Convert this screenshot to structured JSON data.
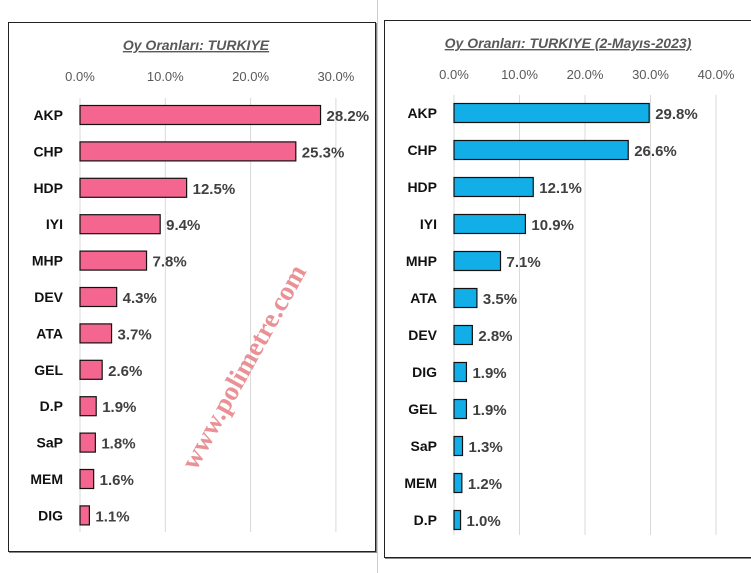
{
  "watermark": "www.polimetre.com",
  "chart_data": [
    {
      "type": "bar",
      "orientation": "horizontal",
      "title": "Oy Oranları: TURKIYE",
      "xlim": [
        0,
        30
      ],
      "ticks": [
        "0.0%",
        "10.0%",
        "20.0%",
        "30.0%"
      ],
      "tick_values": [
        0,
        10,
        20,
        30
      ],
      "color": "#f4668f",
      "categories": [
        "AKP",
        "CHP",
        "HDP",
        "IYI",
        "MHP",
        "DEV",
        "ATA",
        "GEL",
        "D.P",
        "SaP",
        "MEM",
        "DIG"
      ],
      "values": [
        28.2,
        25.3,
        12.5,
        9.4,
        7.8,
        4.3,
        3.7,
        2.6,
        1.9,
        1.8,
        1.6,
        1.1
      ],
      "labels": [
        "28.2%",
        "25.3%",
        "12.5%",
        "9.4%",
        "7.8%",
        "4.3%",
        "3.7%",
        "2.6%",
        "1.9%",
        "1.8%",
        "1.6%",
        "1.1%"
      ]
    },
    {
      "type": "bar",
      "orientation": "horizontal",
      "title": "Oy Oranları: TURKIYE (2-Mayıs-2023)",
      "xlim": [
        0,
        40
      ],
      "ticks": [
        "0.0%",
        "10.0%",
        "20.0%",
        "30.0%",
        "40.0%"
      ],
      "tick_values": [
        0,
        10,
        20,
        30,
        40
      ],
      "color": "#12aee8",
      "categories": [
        "AKP",
        "CHP",
        "HDP",
        "IYI",
        "MHP",
        "ATA",
        "DEV",
        "DIG",
        "GEL",
        "SaP",
        "MEM",
        "D.P"
      ],
      "values": [
        29.8,
        26.6,
        12.1,
        10.9,
        7.1,
        3.5,
        2.8,
        1.9,
        1.9,
        1.3,
        1.2,
        1.0
      ],
      "labels": [
        "29.8%",
        "26.6%",
        "12.1%",
        "10.9%",
        "7.1%",
        "3.5%",
        "2.8%",
        "1.9%",
        "1.9%",
        "1.3%",
        "1.2%",
        "1.0%"
      ]
    }
  ]
}
